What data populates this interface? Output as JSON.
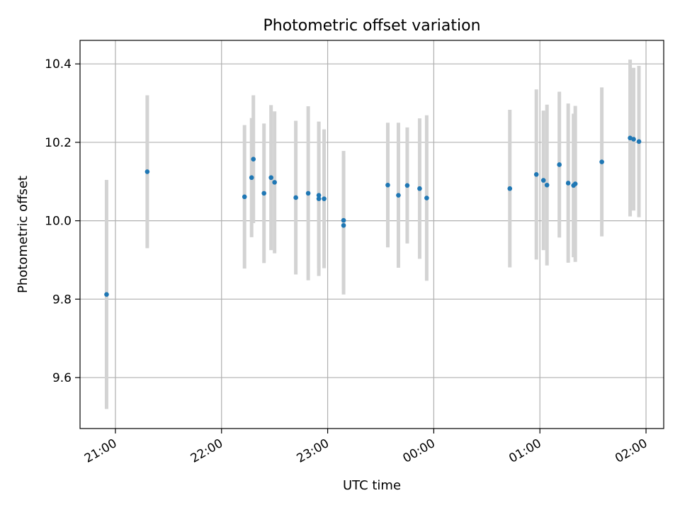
{
  "chart_data": {
    "type": "scatter",
    "title": "Photometric offset variation",
    "xlabel": "UTC time",
    "ylabel": "Photometric offset",
    "x_axis_type": "time",
    "xlim": [
      "20:40",
      "02:10"
    ],
    "ylim": [
      9.47,
      10.46
    ],
    "x_ticks": [
      "21:00",
      "22:00",
      "23:00",
      "00:00",
      "01:00",
      "02:00"
    ],
    "y_ticks": [
      "9.6",
      "9.8",
      "10.0",
      "10.2",
      "10.4"
    ],
    "grid": true,
    "point_color": "#1f77b4",
    "errorbar_color": "#d3d3d3",
    "points": [
      {
        "x": "20:55",
        "y": 9.812,
        "err": 0.292
      },
      {
        "x": "21:18",
        "y": 10.125,
        "err": 0.195
      },
      {
        "x": "22:13",
        "y": 10.061,
        "err": 0.183
      },
      {
        "x": "22:17",
        "y": 10.11,
        "err": 0.152
      },
      {
        "x": "22:18",
        "y": 10.157,
        "err": 0.163
      },
      {
        "x": "22:24",
        "y": 10.07,
        "err": 0.178
      },
      {
        "x": "22:28",
        "y": 10.11,
        "err": 0.185
      },
      {
        "x": "22:30",
        "y": 10.098,
        "err": 0.181
      },
      {
        "x": "22:42",
        "y": 10.059,
        "err": 0.196
      },
      {
        "x": "22:49",
        "y": 10.07,
        "err": 0.222
      },
      {
        "x": "22:55",
        "y": 10.065,
        "err": 0.187
      },
      {
        "x": "22:55",
        "y": 10.056,
        "err": 0.197
      },
      {
        "x": "22:58",
        "y": 10.056,
        "err": 0.177
      },
      {
        "x": "23:09",
        "y": 10.001,
        "err": 0.177
      },
      {
        "x": "23:09",
        "y": 9.988,
        "err": 0.176
      },
      {
        "x": "23:34",
        "y": 10.091,
        "err": 0.159
      },
      {
        "x": "23:40",
        "y": 10.065,
        "err": 0.185
      },
      {
        "x": "23:45",
        "y": 10.09,
        "err": 0.148
      },
      {
        "x": "23:52",
        "y": 10.082,
        "err": 0.179
      },
      {
        "x": "23:56",
        "y": 10.058,
        "err": 0.211
      },
      {
        "x": "00:43",
        "y": 10.082,
        "err": 0.201
      },
      {
        "x": "00:58",
        "y": 10.118,
        "err": 0.217
      },
      {
        "x": "01:02",
        "y": 10.103,
        "err": 0.178
      },
      {
        "x": "01:04",
        "y": 10.091,
        "err": 0.205
      },
      {
        "x": "01:11",
        "y": 10.143,
        "err": 0.186
      },
      {
        "x": "01:16",
        "y": 10.096,
        "err": 0.203
      },
      {
        "x": "01:19",
        "y": 10.09,
        "err": 0.183
      },
      {
        "x": "01:20",
        "y": 10.094,
        "err": 0.199
      },
      {
        "x": "01:35",
        "y": 10.15,
        "err": 0.19
      },
      {
        "x": "01:51",
        "y": 10.211,
        "err": 0.2
      },
      {
        "x": "01:53",
        "y": 10.208,
        "err": 0.182
      },
      {
        "x": "01:56",
        "y": 10.202,
        "err": 0.193
      }
    ]
  }
}
